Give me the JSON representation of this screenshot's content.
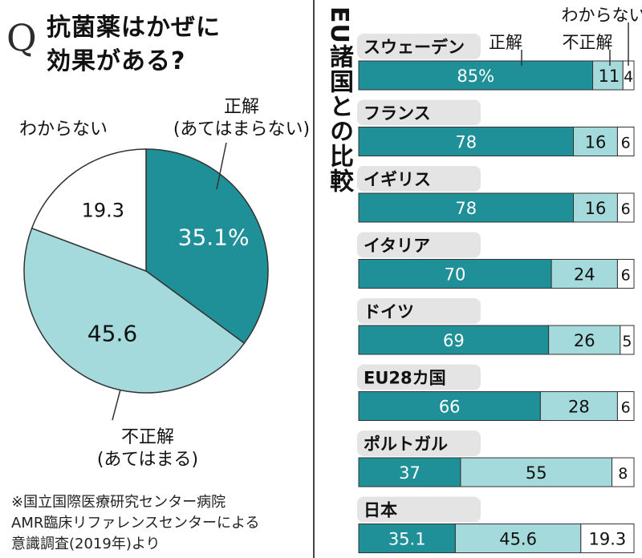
{
  "question": "抗菌薬はかぜに\n効果がある?",
  "q_mark": "Q",
  "pie_labels": {
    "correct": "正解\n(あてはまらない)",
    "wrong": "不正解\n(あてはまる)",
    "unknown": "わからない"
  },
  "source": "※国立国際医療研究センター病院\nAMR臨床リファレンスセンターによる\n意識調査(2019年)より",
  "eu_title": "EU諸国との比較",
  "legend": {
    "correct": "正解",
    "wrong": "不正解",
    "unknown": "わからない"
  },
  "colors": {
    "correct": "#1f8f98",
    "wrong": "#a4dadb",
    "unknown": "#ffffff",
    "country_tab": "#e4e4e4",
    "outline": "#333333"
  },
  "chart_data": [
    {
      "type": "pie",
      "title": "抗菌薬はかぜに効果がある?",
      "categories": [
        "正解(あてはまらない)",
        "不正解(あてはまる)",
        "わからない"
      ],
      "values": [
        35.1,
        45.6,
        19.3
      ],
      "labels": [
        "35.1%",
        "45.6",
        "19.3"
      ]
    },
    {
      "type": "bar",
      "title": "EU諸国との比較",
      "categories": [
        "スウェーデン",
        "フランス",
        "イギリス",
        "イタリア",
        "ドイツ",
        "EU28カ国",
        "ポルトガル",
        "日本"
      ],
      "series": [
        {
          "name": "正解",
          "values": [
            85,
            78,
            78,
            70,
            69,
            66,
            37,
            35.1
          ],
          "labels": [
            "85%",
            "78",
            "78",
            "70",
            "69",
            "66",
            "37",
            "35.1"
          ]
        },
        {
          "name": "不正解",
          "values": [
            11,
            16,
            16,
            24,
            26,
            28,
            55,
            45.6
          ],
          "labels": [
            "11",
            "16",
            "16",
            "24",
            "26",
            "28",
            "55",
            "45.6"
          ]
        },
        {
          "name": "わからない",
          "values": [
            4,
            6,
            6,
            6,
            5,
            6,
            8,
            19.3
          ],
          "labels": [
            "4",
            "6",
            "6",
            "6",
            "5",
            "6",
            "8",
            "19.3"
          ]
        }
      ],
      "stacked": true
    }
  ]
}
